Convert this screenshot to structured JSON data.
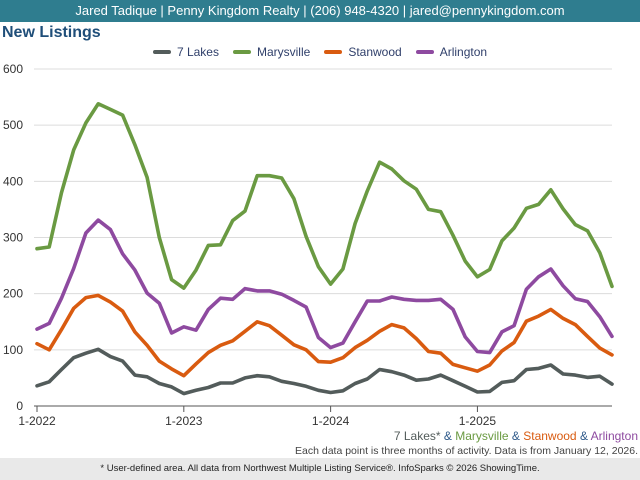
{
  "header": {
    "agent_line": "Jared Tadique | Penny Kingdom Realty | (206) 948-4320 | jared@pennykingdom.com"
  },
  "page_title": "New Listings",
  "colors": {
    "header_bg": "#2f7d8f",
    "title": "#1f4e79"
  },
  "series_caption": {
    "parts": [
      {
        "text": "7 Lakes*",
        "color": "#535c5b"
      },
      {
        "text": " & ",
        "color": "#2f5a8a"
      },
      {
        "text": "Marysville",
        "color": "#6a9a42"
      },
      {
        "text": " & ",
        "color": "#2f5a8a"
      },
      {
        "text": "Stanwood",
        "color": "#d95b10"
      },
      {
        "text": " & ",
        "color": "#2f5a8a"
      },
      {
        "text": "Arlington",
        "color": "#8e4aa0"
      }
    ]
  },
  "data_note": "Each data point is three months of activity. Data is from January 12, 2026.",
  "footer": "* User-defined area. All data from Northwest Multiple Listing Service®. InfoSparks © 2026 ShowingTime.",
  "chart_data": {
    "type": "line",
    "title": "New Listings",
    "xlabel": "",
    "ylabel": "",
    "ylim": [
      0,
      600
    ],
    "yticks": [
      "0",
      "100",
      "200",
      "300",
      "400",
      "500",
      "600"
    ],
    "xticks": [
      {
        "label": "1-2022",
        "index": 0
      },
      {
        "label": "1-2023",
        "index": 12
      },
      {
        "label": "1-2024",
        "index": 24
      },
      {
        "label": "1-2025",
        "index": 36
      }
    ],
    "x": [
      "1-2022",
      "2-2022",
      "3-2022",
      "4-2022",
      "5-2022",
      "6-2022",
      "7-2022",
      "8-2022",
      "9-2022",
      "10-2022",
      "11-2022",
      "12-2022",
      "1-2023",
      "2-2023",
      "3-2023",
      "4-2023",
      "5-2023",
      "6-2023",
      "7-2023",
      "8-2023",
      "9-2023",
      "10-2023",
      "11-2023",
      "12-2023",
      "1-2024",
      "2-2024",
      "3-2024",
      "4-2024",
      "5-2024",
      "6-2024",
      "7-2024",
      "8-2024",
      "9-2024",
      "10-2024",
      "11-2024",
      "12-2024",
      "1-2025",
      "2-2025",
      "3-2025",
      "4-2025",
      "5-2025",
      "6-2025",
      "7-2025",
      "8-2025",
      "9-2025",
      "10-2025",
      "11-2025",
      "12-2025"
    ],
    "grid": "horizontal",
    "legend_position": "top",
    "series": [
      {
        "name": "7 Lakes",
        "color": "#535c5b",
        "values": [
          36,
          43,
          65,
          86,
          94,
          101,
          88,
          80,
          55,
          52,
          40,
          34,
          22,
          28,
          33,
          41,
          41,
          50,
          54,
          52,
          44,
          40,
          35,
          28,
          24,
          27,
          40,
          48,
          65,
          61,
          55,
          46,
          48,
          55,
          45,
          35,
          25,
          26,
          42,
          45,
          65,
          67,
          73,
          57,
          55,
          51,
          53,
          39
        ]
      },
      {
        "name": "Marysville",
        "color": "#6a9a42",
        "values": [
          280,
          283,
          380,
          456,
          504,
          538,
          528,
          518,
          465,
          407,
          300,
          225,
          210,
          242,
          286,
          287,
          330,
          347,
          410,
          410,
          406,
          369,
          302,
          248,
          217,
          244,
          325,
          383,
          434,
          422,
          401,
          386,
          350,
          346,
          304,
          258,
          230,
          243,
          294,
          317,
          352,
          359,
          385,
          351,
          323,
          312,
          273,
          213
        ]
      },
      {
        "name": "Stanwood",
        "color": "#d95b10",
        "values": [
          111,
          100,
          136,
          174,
          193,
          197,
          185,
          169,
          132,
          108,
          80,
          66,
          54,
          75,
          95,
          108,
          116,
          133,
          150,
          143,
          126,
          109,
          100,
          79,
          78,
          86,
          104,
          117,
          133,
          145,
          139,
          120,
          97,
          94,
          74,
          68,
          62,
          73,
          98,
          113,
          151,
          160,
          172,
          156,
          145,
          124,
          103,
          91
        ]
      },
      {
        "name": "Arlington",
        "color": "#8e4aa0",
        "values": [
          137,
          147,
          192,
          245,
          308,
          331,
          314,
          271,
          242,
          201,
          183,
          130,
          141,
          135,
          172,
          192,
          190,
          209,
          205,
          205,
          199,
          188,
          176,
          122,
          104,
          112,
          150,
          187,
          187,
          194,
          190,
          188,
          188,
          190,
          172,
          123,
          97,
          95,
          132,
          143,
          208,
          230,
          244,
          214,
          191,
          186,
          159,
          124
        ]
      }
    ]
  }
}
